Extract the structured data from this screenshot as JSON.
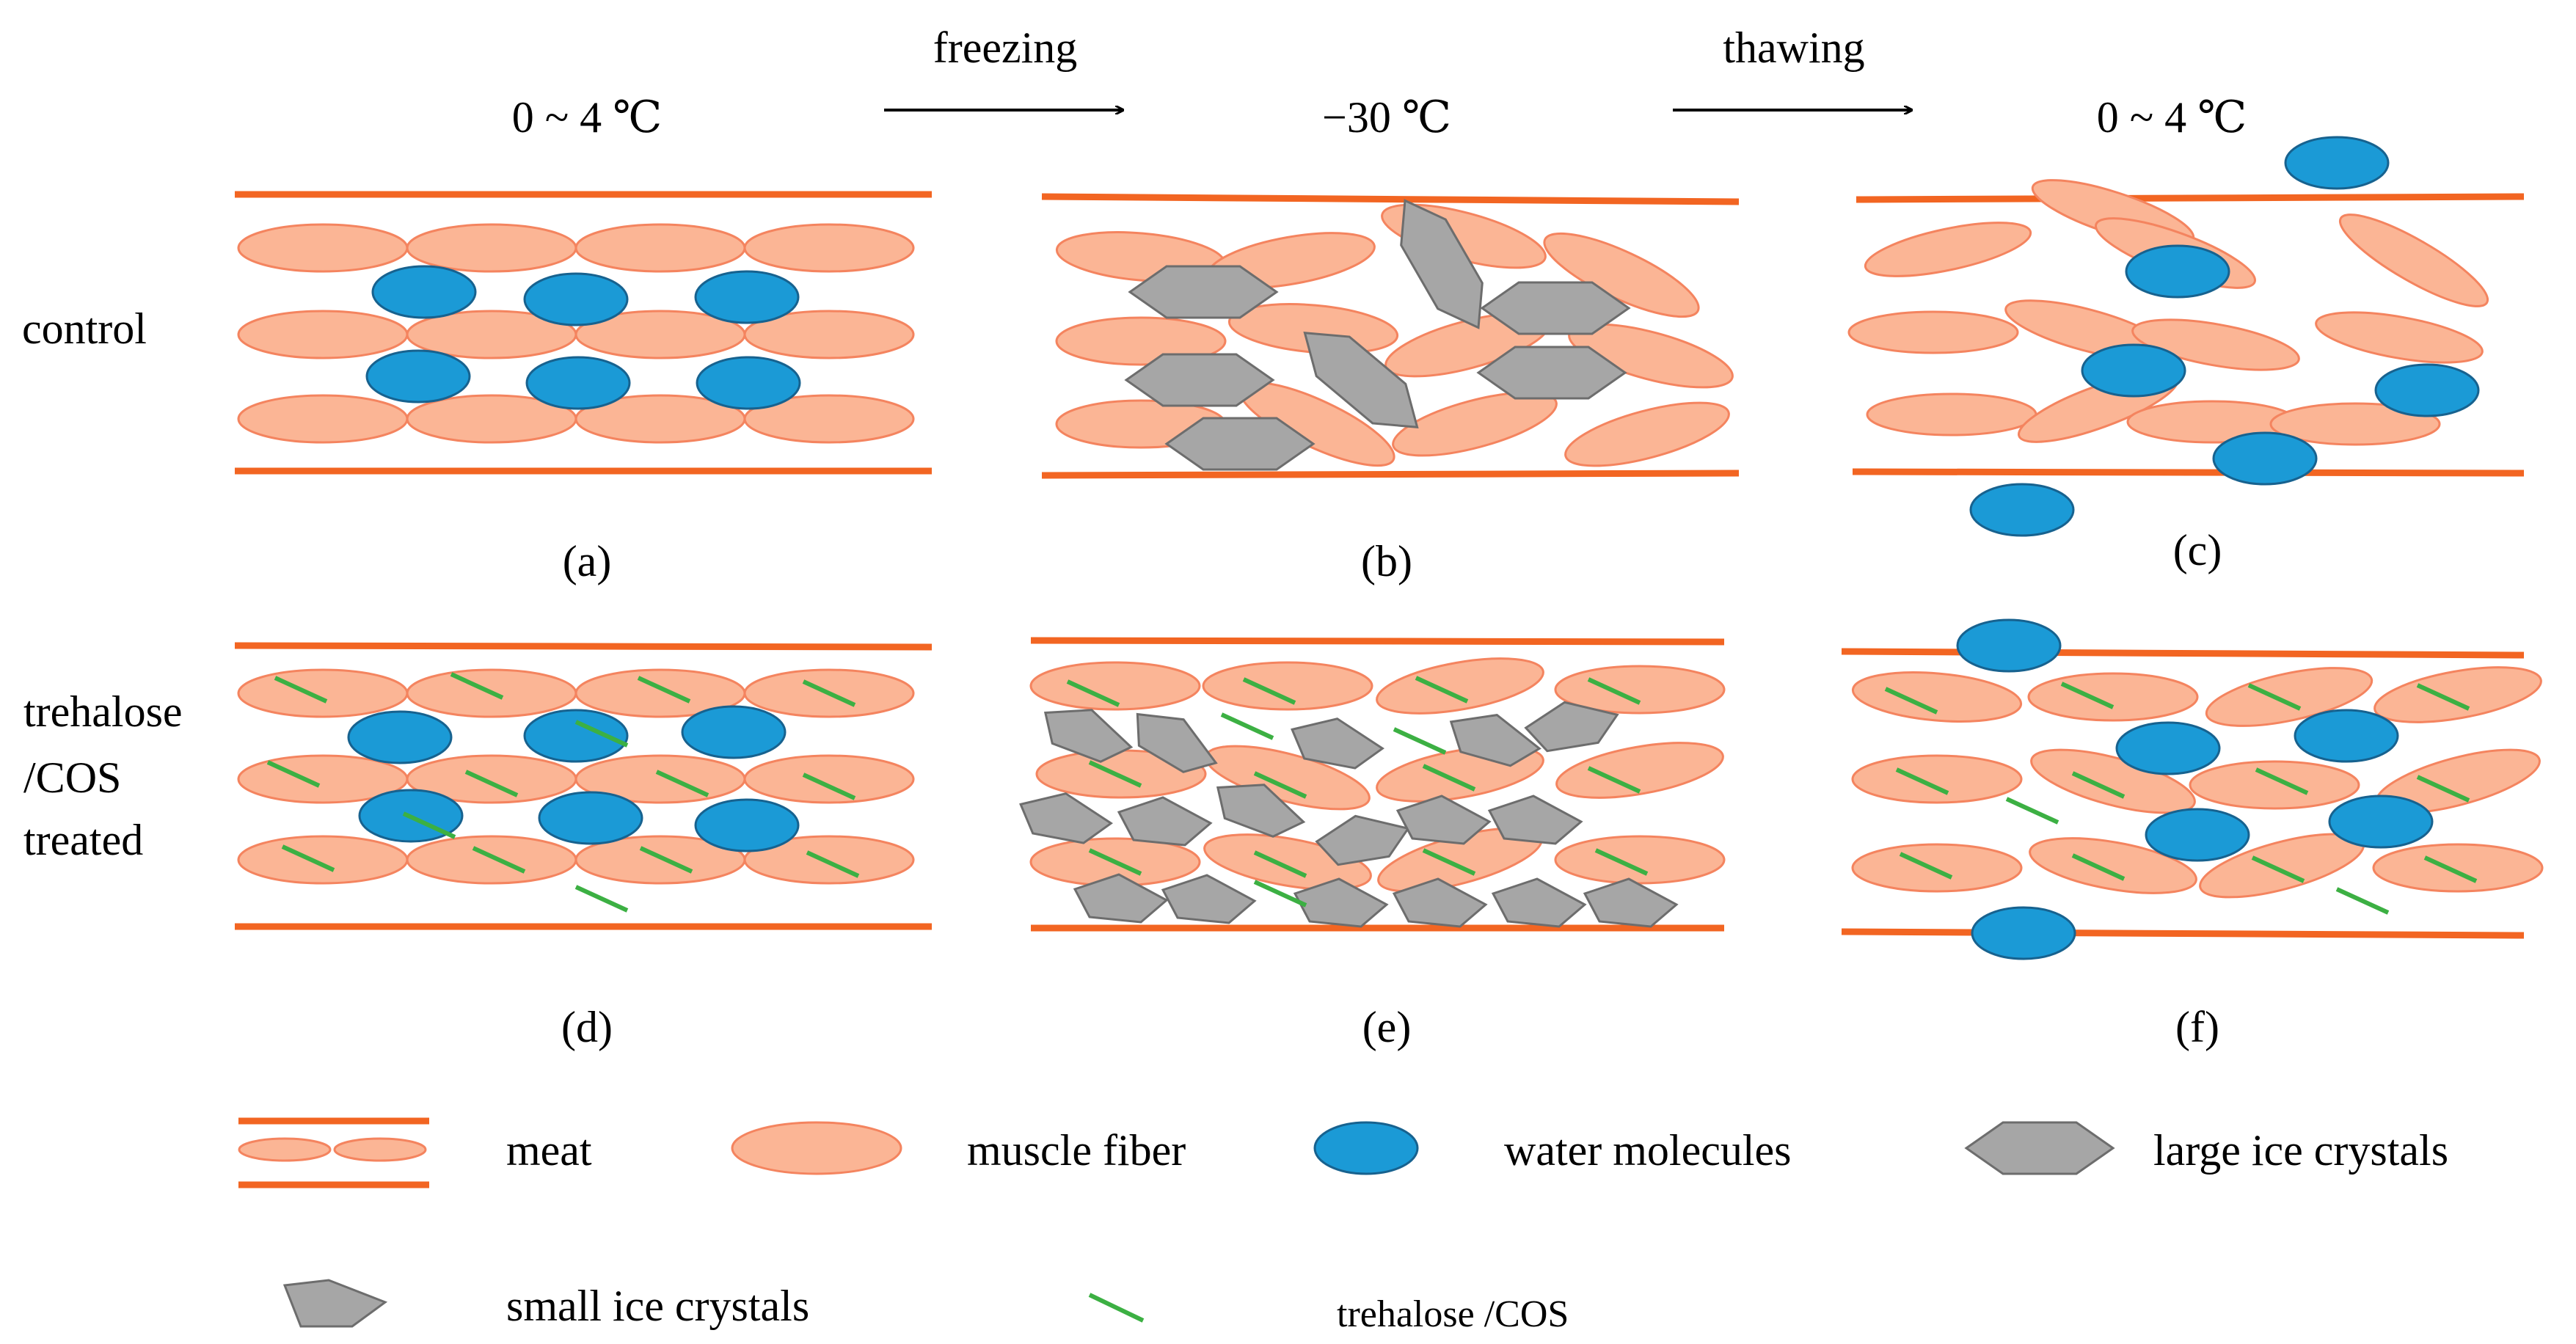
{
  "stages": {
    "start_temp": "0 ~ 4 ℃",
    "frozen_temp": "−30 ℃",
    "end_temp": "0 ~ 4 ℃",
    "freezing_label": "freezing",
    "thawing_label": "thawing"
  },
  "rows": {
    "control": "control",
    "treated_line1": "trehalose",
    "treated_line2": "/COS",
    "treated_line3": "treated"
  },
  "panels": {
    "a": "(a)",
    "b": "(b)",
    "c": "(c)",
    "d": "(d)",
    "e": "(e)",
    "f": "(f)"
  },
  "legend": {
    "meat": "meat",
    "muscle_fiber": "muscle fiber",
    "water_molecules": "water molecules",
    "large_ice_crystals": "large ice crystals",
    "small_ice_crystals": "small ice crystals",
    "trehalose_cos": "trehalose /COS"
  },
  "colors": {
    "meat_line": "#f26522",
    "fiber_fill": "#fbb595",
    "fiber_stroke": "#f4845f",
    "water_fill": "#1b9ad6",
    "water_stroke": "#17628f",
    "ice_fill": "#a6a6a6",
    "ice_stroke": "#6d6d6d",
    "trehalose_line": "#3cb043"
  }
}
